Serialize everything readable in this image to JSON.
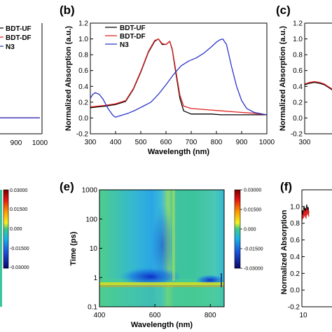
{
  "panel_labels": [
    "(b)",
    "(c)",
    "(e)",
    "(f)"
  ],
  "chart_data": [
    {
      "id": "a",
      "type": "line",
      "xlabel": "",
      "ylabel": "",
      "xlim": [
        700,
        1000
      ],
      "ylim": [
        -0.2,
        1.2
      ],
      "xticks": [
        "900",
        "1000"
      ],
      "legend": {
        "placement": "top-left",
        "entries": [
          "BDT-UF",
          "BDT-DF",
          "N3"
        ]
      },
      "series": [
        {
          "name": "BDT-UF",
          "color": "#000000",
          "x": [
            700,
            800,
            900,
            1000
          ],
          "y": [
            0.0,
            0.0,
            0.0,
            0.0
          ]
        },
        {
          "name": "BDT-DF",
          "color": "#e02020",
          "x": [
            700,
            800,
            900,
            1000
          ],
          "y": [
            0.0,
            0.0,
            0.0,
            0.0
          ]
        },
        {
          "name": "N3",
          "color": "#2b35c8",
          "x": [
            700,
            800,
            900,
            1000
          ],
          "y": [
            0.0,
            0.0,
            0.0,
            0.0
          ]
        }
      ]
    },
    {
      "id": "b",
      "type": "line",
      "xlabel": "Wavelength (nm)",
      "ylabel": "Normalized Absorption (a.u.)",
      "xlim": [
        300,
        1000
      ],
      "ylim": [
        -0.2,
        1.2
      ],
      "xticks": [
        "300",
        "400",
        "500",
        "600",
        "700",
        "800",
        "900",
        "1000"
      ],
      "yticks": [
        "-0.2",
        "0.0",
        "0.2",
        "0.4",
        "0.6",
        "0.8",
        "1.0",
        "1.2"
      ],
      "legend": {
        "placement": "top-left",
        "entries": [
          "BDT-UF",
          "BDT-DF",
          "N3"
        ]
      },
      "series": [
        {
          "name": "BDT-UF",
          "color": "#000000",
          "x": [
            300,
            330,
            360,
            400,
            440,
            470,
            500,
            530,
            555,
            570,
            585,
            600,
            615,
            625,
            640,
            655,
            670,
            700,
            740,
            780,
            820,
            860,
            900,
            950,
            1000
          ],
          "y": [
            0.13,
            0.14,
            0.15,
            0.17,
            0.21,
            0.36,
            0.58,
            0.83,
            0.97,
            1.0,
            0.93,
            0.93,
            0.97,
            0.86,
            0.55,
            0.25,
            0.09,
            0.05,
            0.05,
            0.05,
            0.04,
            0.04,
            0.04,
            0.04,
            0.04
          ]
        },
        {
          "name": "BDT-DF",
          "color": "#e02020",
          "x": [
            300,
            330,
            360,
            400,
            440,
            470,
            500,
            530,
            555,
            570,
            585,
            600,
            615,
            625,
            640,
            655,
            670,
            700,
            740,
            780,
            820,
            860,
            900,
            950,
            1000
          ],
          "y": [
            0.14,
            0.15,
            0.16,
            0.18,
            0.22,
            0.37,
            0.59,
            0.84,
            0.98,
            1.0,
            0.94,
            0.93,
            0.97,
            0.87,
            0.58,
            0.29,
            0.15,
            0.12,
            0.11,
            0.1,
            0.09,
            0.08,
            0.07,
            0.06,
            0.04
          ]
        },
        {
          "name": "N3",
          "color": "#2b35c8",
          "x": [
            300,
            310,
            320,
            335,
            350,
            370,
            390,
            400,
            420,
            450,
            480,
            510,
            540,
            570,
            600,
            630,
            660,
            690,
            720,
            750,
            780,
            800,
            815,
            825,
            840,
            860,
            880,
            900,
            920,
            950,
            1000
          ],
          "y": [
            0.25,
            0.3,
            0.32,
            0.3,
            0.24,
            0.12,
            0.03,
            0.01,
            0.03,
            0.06,
            0.1,
            0.15,
            0.2,
            0.3,
            0.42,
            0.55,
            0.66,
            0.72,
            0.76,
            0.82,
            0.9,
            0.96,
            0.99,
            1.0,
            0.93,
            0.65,
            0.4,
            0.22,
            0.12,
            0.07,
            0.04
          ]
        }
      ]
    },
    {
      "id": "c",
      "type": "line",
      "xlabel": "",
      "ylabel": "Normalized Absorption (a.u.)",
      "xlim": [
        300,
        400
      ],
      "ylim": [
        -0.2,
        1.2
      ],
      "xticks": [
        "300"
      ],
      "yticks": [
        "-0.2",
        "0.0",
        "0.2",
        "0.4",
        "0.6",
        "0.8",
        "1.0",
        "1.2"
      ],
      "series": [
        {
          "name": "BDT-UF",
          "color": "#000000",
          "x": [
            300,
            310,
            320,
            330,
            340,
            350,
            360,
            370,
            380,
            390,
            400
          ],
          "y": [
            0.42,
            0.44,
            0.45,
            0.44,
            0.42,
            0.38,
            0.34,
            0.3,
            0.26,
            0.24,
            0.23
          ]
        },
        {
          "name": "BDT-DF",
          "color": "#e02020",
          "x": [
            300,
            310,
            320,
            330,
            340,
            350,
            360,
            370,
            380,
            390,
            400
          ],
          "y": [
            0.43,
            0.45,
            0.46,
            0.45,
            0.43,
            0.39,
            0.35,
            0.31,
            0.27,
            0.25,
            0.24
          ]
        }
      ]
    },
    {
      "id": "d",
      "type": "heatmap",
      "colorbar": {
        "ticks": [
          "0.03000",
          "0.01500",
          "0.000",
          "-0.01500",
          "-0.03000"
        ]
      }
    },
    {
      "id": "e",
      "type": "heatmap",
      "xlabel": "Wavelength (nm)",
      "ylabel": "Time (ps)",
      "xlim": [
        400,
        850
      ],
      "ylim": [
        0.1,
        1000
      ],
      "yscale": "log",
      "xticks": [
        "400",
        "600",
        "800"
      ],
      "yticks": [
        "0.1",
        "1",
        "10",
        "100",
        "1000"
      ],
      "colorbar": {
        "min": -0.03,
        "max": 0.03,
        "ticks": [
          "0.03000",
          "0.01500",
          "0.000",
          "-0.01500",
          "-0.03000"
        ]
      },
      "features": [
        {
          "description": "ground-state bleach band",
          "x_range": [
            480,
            660
          ],
          "sign": "negative"
        },
        {
          "description": "bleach band",
          "x_range": [
            750,
            830
          ],
          "sign": "negative"
        }
      ]
    },
    {
      "id": "f",
      "type": "line",
      "xlabel": "",
      "ylabel": "Normalized Absorption",
      "xlim": [
        10,
        100
      ],
      "ylim": [
        -0.2,
        1.2
      ],
      "xticks": [
        "10"
      ],
      "yticks": [
        "-0.2",
        "0.0",
        "0.2",
        "0.4",
        "0.6",
        "0.8",
        "1.0"
      ],
      "series": [
        {
          "name": "BDT-UF",
          "color": "#000000",
          "x": [
            10,
            11,
            12,
            13,
            14,
            15,
            16,
            17,
            18,
            19,
            20
          ],
          "y": [
            0.88,
            0.95,
            0.9,
            1.0,
            0.92,
            0.98,
            0.9,
            1.02,
            0.94,
            0.99,
            0.92
          ]
        },
        {
          "name": "BDT-DF",
          "color": "#e02020",
          "x": [
            10,
            11,
            12,
            13,
            14,
            15,
            16,
            17,
            18,
            19,
            20
          ],
          "y": [
            0.82,
            0.9,
            0.86,
            0.96,
            0.88,
            0.95,
            0.86,
            0.98,
            0.9,
            0.96,
            0.88
          ]
        }
      ]
    }
  ]
}
